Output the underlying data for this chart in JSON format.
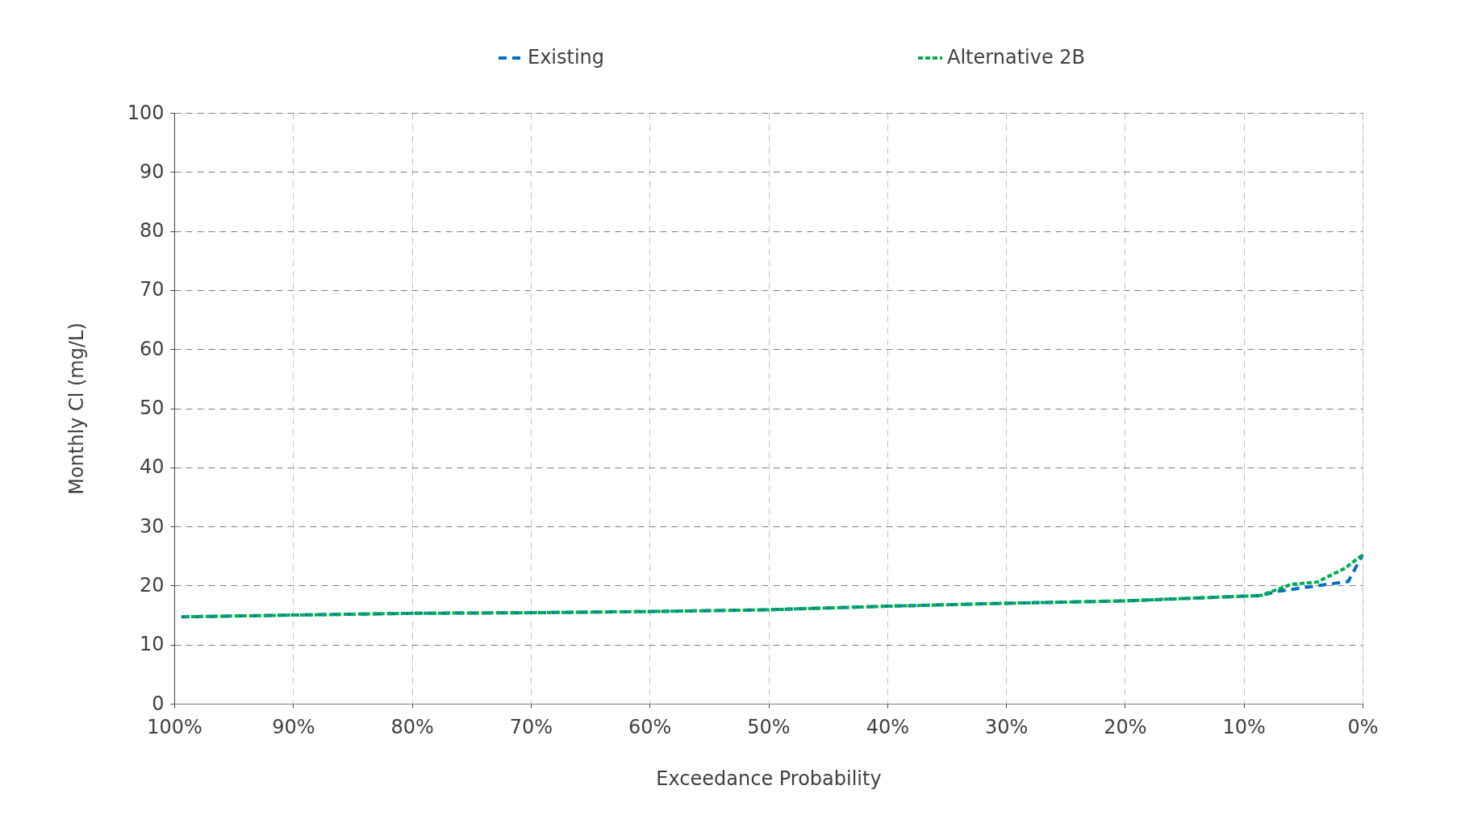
{
  "chart_data": {
    "type": "line",
    "xlabel": "Exceedance Probability",
    "ylabel": "Monthly Cl (mg/L)",
    "xlim": [
      100,
      0
    ],
    "xticks": [
      {
        "value": 100,
        "label": "100%"
      },
      {
        "value": 90,
        "label": "90%"
      },
      {
        "value": 80,
        "label": "80%"
      },
      {
        "value": 70,
        "label": "70%"
      },
      {
        "value": 60,
        "label": "60%"
      },
      {
        "value": 50,
        "label": "50%"
      },
      {
        "value": 40,
        "label": "40%"
      },
      {
        "value": 30,
        "label": "30%"
      },
      {
        "value": 20,
        "label": "20%"
      },
      {
        "value": 10,
        "label": "10%"
      },
      {
        "value": 0,
        "label": "0%"
      }
    ],
    "ylim": [
      0,
      100
    ],
    "yticks": [
      0,
      10,
      20,
      30,
      40,
      50,
      60,
      70,
      80,
      90,
      100
    ],
    "x": [
      99.4,
      90,
      80,
      70,
      60,
      50,
      40,
      30,
      20,
      10,
      8.6,
      7.2,
      1.2,
      0
    ],
    "series": [
      {
        "name": "Existing",
        "color": "#0070c0",
        "line_style": "dashed",
        "values": [
          14.7,
          15.0,
          15.3,
          15.4,
          15.6,
          15.9,
          16.5,
          17.0,
          17.4,
          18.2,
          18.3,
          19.0,
          20.7,
          25.2
        ]
      },
      {
        "name": "Alternative 2B",
        "color": "#00b050",
        "line_style": "dotted",
        "x": [
          99.4,
          90,
          80,
          70,
          60,
          50,
          40,
          30,
          20,
          10,
          8.6,
          6.0,
          3.8,
          1.5,
          0
        ],
        "values": [
          14.7,
          15.0,
          15.3,
          15.4,
          15.6,
          15.9,
          16.5,
          17.0,
          17.4,
          18.2,
          18.3,
          20.2,
          20.6,
          22.9,
          25.2
        ]
      }
    ],
    "grid": true,
    "legend": "top",
    "marker": "none"
  }
}
